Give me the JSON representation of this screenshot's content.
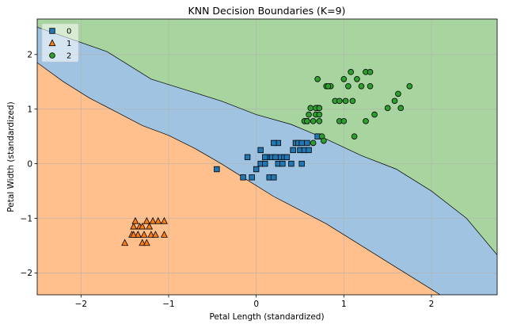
{
  "chart_data": {
    "type": "scatter",
    "title": "KNN Decision Boundaries (K=9)",
    "xlabel": "Petal Length (standardized)",
    "ylabel": "Petal Width (standardized)",
    "xlim": [
      -2.5,
      2.75
    ],
    "ylim": [
      -2.4,
      2.65
    ],
    "x_ticks": [
      -2,
      -1,
      0,
      1,
      2
    ],
    "x_tick_labels": [
      "−2",
      "−1",
      "0",
      "1",
      "2"
    ],
    "y_ticks": [
      -2,
      -1,
      0,
      1,
      2
    ],
    "y_tick_labels": [
      "−2",
      "−1",
      "0",
      "1",
      "2"
    ],
    "grid": true,
    "legend_position": "top-left",
    "regions": [
      {
        "class": "0",
        "color": "#9fc3e0"
      },
      {
        "class": "1",
        "color": "#ffc08e"
      },
      {
        "class": "2",
        "color": "#a8d4a0"
      }
    ],
    "boundaries": {
      "between_1_and_0": [
        [
          -2.5,
          1.85
        ],
        [
          -2.2,
          1.5
        ],
        [
          -1.9,
          1.2
        ],
        [
          -1.6,
          0.95
        ],
        [
          -1.3,
          0.7
        ],
        [
          -1.0,
          0.52
        ],
        [
          -0.7,
          0.28
        ],
        [
          -0.4,
          0.0
        ],
        [
          -0.1,
          -0.3
        ],
        [
          0.2,
          -0.6
        ],
        [
          0.5,
          -0.85
        ],
        [
          0.8,
          -1.1
        ],
        [
          1.1,
          -1.4
        ],
        [
          1.4,
          -1.7
        ],
        [
          1.7,
          -2.0
        ],
        [
          2.0,
          -2.3
        ],
        [
          2.1,
          -2.4
        ]
      ],
      "between_0_and_2": [
        [
          -2.5,
          2.5
        ],
        [
          -1.7,
          2.05
        ],
        [
          -1.2,
          1.55
        ],
        [
          -0.8,
          1.35
        ],
        [
          -0.4,
          1.15
        ],
        [
          0.0,
          0.9
        ],
        [
          0.4,
          0.72
        ],
        [
          0.8,
          0.45
        ],
        [
          1.2,
          0.15
        ],
        [
          1.6,
          -0.1
        ],
        [
          2.0,
          -0.5
        ],
        [
          2.4,
          -1.0
        ],
        [
          2.75,
          -1.67
        ]
      ]
    },
    "series": [
      {
        "name": "0",
        "marker": "square",
        "color": "#1f77b4",
        "points": [
          [
            -0.45,
            -0.1
          ],
          [
            -0.15,
            -0.25
          ],
          [
            -0.05,
            -0.25
          ],
          [
            0.0,
            -0.1
          ],
          [
            0.05,
            0.0
          ],
          [
            0.1,
            0.0
          ],
          [
            0.12,
            0.12
          ],
          [
            0.18,
            0.12
          ],
          [
            0.22,
            0.12
          ],
          [
            0.25,
            0.0
          ],
          [
            0.28,
            0.12
          ],
          [
            0.3,
            0.0
          ],
          [
            0.32,
            0.12
          ],
          [
            0.35,
            0.12
          ],
          [
            0.4,
            0.0
          ],
          [
            0.42,
            0.25
          ],
          [
            0.45,
            0.38
          ],
          [
            0.48,
            0.38
          ],
          [
            0.5,
            0.25
          ],
          [
            0.52,
            0.38
          ],
          [
            0.55,
            0.25
          ],
          [
            0.58,
            0.38
          ],
          [
            0.6,
            0.25
          ],
          [
            0.15,
            -0.25
          ],
          [
            0.2,
            -0.25
          ],
          [
            0.25,
            0.38
          ],
          [
            0.05,
            0.25
          ],
          [
            -0.1,
            0.12
          ],
          [
            0.1,
            0.12
          ],
          [
            0.52,
            0.0
          ],
          [
            0.57,
            0.78
          ],
          [
            0.7,
            0.5
          ],
          [
            0.2,
            0.38
          ]
        ]
      },
      {
        "name": "1",
        "marker": "triangle",
        "color": "#ff7f0e",
        "points": [
          [
            -1.5,
            -1.45
          ],
          [
            -1.42,
            -1.3
          ],
          [
            -1.4,
            -1.15
          ],
          [
            -1.38,
            -1.05
          ],
          [
            -1.35,
            -1.3
          ],
          [
            -1.33,
            -1.15
          ],
          [
            -1.3,
            -1.45
          ],
          [
            -1.28,
            -1.3
          ],
          [
            -1.25,
            -1.45
          ],
          [
            -1.25,
            -1.05
          ],
          [
            -1.22,
            -1.15
          ],
          [
            -1.2,
            -1.3
          ],
          [
            -1.18,
            -1.05
          ],
          [
            -1.15,
            -1.3
          ],
          [
            -1.12,
            -1.05
          ],
          [
            -1.05,
            -1.05
          ],
          [
            -1.05,
            -1.3
          ],
          [
            -1.3,
            -1.15
          ],
          [
            -1.35,
            -1.3
          ],
          [
            -1.4,
            -1.3
          ]
        ]
      },
      {
        "name": "2",
        "marker": "circle",
        "color": "#2ca02c",
        "points": [
          [
            0.55,
            0.78
          ],
          [
            0.6,
            0.9
          ],
          [
            0.62,
            1.02
          ],
          [
            0.65,
            0.78
          ],
          [
            0.68,
            0.9
          ],
          [
            0.7,
            1.02
          ],
          [
            0.72,
            0.9
          ],
          [
            0.75,
            0.5
          ],
          [
            0.72,
            0.78
          ],
          [
            0.68,
            1.02
          ],
          [
            0.72,
            1.02
          ],
          [
            0.8,
            1.42
          ],
          [
            0.85,
            1.42
          ],
          [
            0.9,
            1.15
          ],
          [
            0.95,
            1.15
          ],
          [
            1.0,
            1.55
          ],
          [
            1.02,
            1.15
          ],
          [
            1.05,
            1.42
          ],
          [
            1.08,
            1.68
          ],
          [
            1.1,
            1.15
          ],
          [
            1.15,
            1.55
          ],
          [
            1.2,
            1.42
          ],
          [
            1.25,
            1.68
          ],
          [
            1.3,
            1.42
          ],
          [
            1.3,
            1.68
          ],
          [
            1.35,
            0.9
          ],
          [
            1.5,
            1.02
          ],
          [
            1.58,
            1.15
          ],
          [
            1.62,
            1.28
          ],
          [
            1.65,
            1.02
          ],
          [
            1.75,
            1.42
          ],
          [
            0.95,
            0.78
          ],
          [
            1.0,
            0.78
          ],
          [
            1.12,
            0.5
          ],
          [
            1.25,
            0.78
          ],
          [
            0.58,
            0.78
          ],
          [
            0.7,
            1.55
          ],
          [
            0.82,
            1.42
          ],
          [
            0.65,
            0.38
          ],
          [
            0.77,
            0.42
          ]
        ]
      }
    ]
  }
}
